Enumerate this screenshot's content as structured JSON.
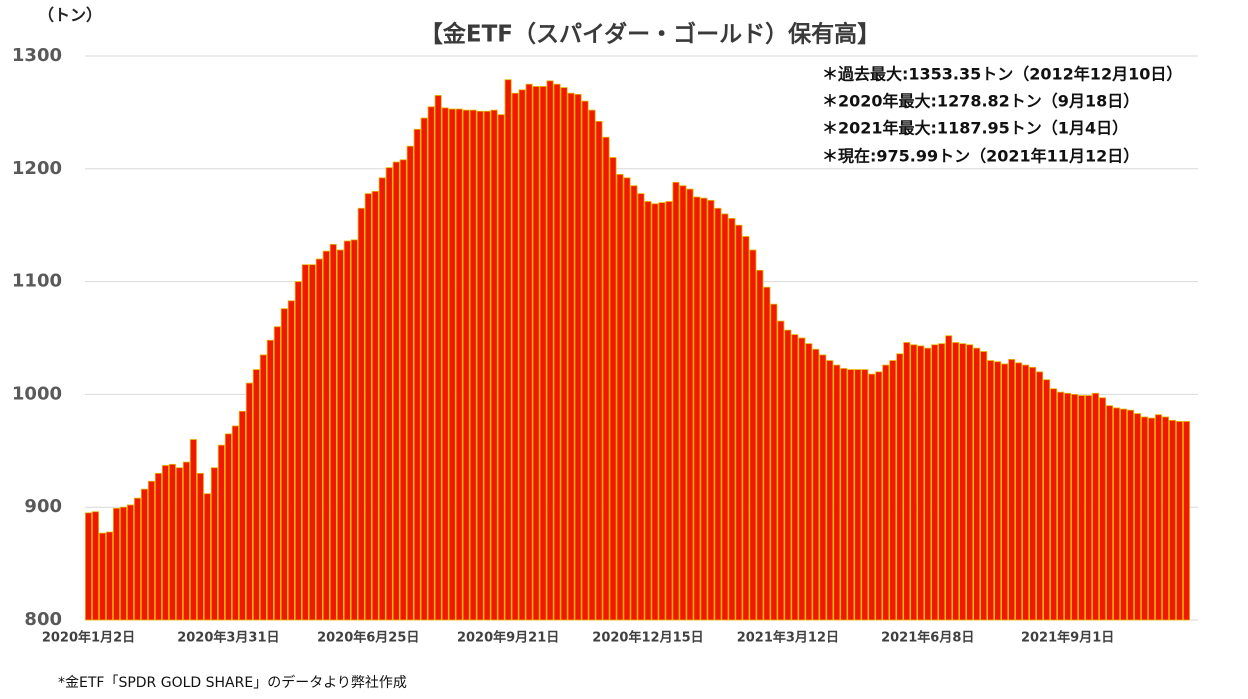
{
  "chart_data": {
    "type": "bar",
    "title": "【金ETF（スパイダー・ゴールド）保有高】",
    "y_unit": "（トン）",
    "annotations": [
      "＊過去最大:1353.35トン（2012年12月10日）",
      "＊2020年最大:1278.82トン（9月18日）",
      "＊2021年最大:1187.95トン（1月4日）",
      "＊現在:975.99トン（2021年11月12日）"
    ],
    "source": "*金ETF「SPDR GOLD SHARE」のデータより弊社作成",
    "color": "#f21800",
    "edgecolor": "#e6b400",
    "ylim": [
      800,
      1300
    ],
    "yticks": [
      800,
      900,
      1000,
      1100,
      1200,
      1300
    ],
    "grid": true,
    "categories": [
      "2020年1月2日",
      null,
      null,
      null,
      null,
      null,
      null,
      null,
      null,
      null,
      null,
      null,
      null,
      null,
      null,
      null,
      null,
      null,
      null,
      null,
      "2020年3月31日",
      null,
      null,
      null,
      null,
      null,
      null,
      null,
      null,
      null,
      null,
      null,
      null,
      null,
      null,
      null,
      null,
      null,
      null,
      null,
      "2020年6月25日",
      null,
      null,
      null,
      null,
      null,
      null,
      null,
      null,
      null,
      null,
      null,
      null,
      null,
      null,
      null,
      null,
      null,
      null,
      null,
      "2020年9月21日",
      null,
      null,
      null,
      null,
      null,
      null,
      null,
      null,
      null,
      null,
      null,
      null,
      null,
      null,
      null,
      null,
      null,
      null,
      null,
      "2020年12月15日",
      null,
      null,
      null,
      null,
      null,
      null,
      null,
      null,
      null,
      null,
      null,
      null,
      null,
      null,
      null,
      null,
      null,
      null,
      null,
      "2021年3月12日",
      null,
      null,
      null,
      null,
      null,
      null,
      null,
      null,
      null,
      null,
      null,
      null,
      null,
      null,
      null,
      null,
      null,
      null,
      null,
      "2021年6月8日",
      null,
      null,
      null,
      null,
      null,
      null,
      null,
      null,
      null,
      null,
      null,
      null,
      null,
      null,
      null,
      null,
      null,
      null,
      null,
      "2021年9月1日",
      null,
      null,
      null,
      null,
      null,
      null,
      null,
      null,
      null,
      null,
      null,
      null,
      null,
      null,
      null,
      null,
      null
    ],
    "values": [
      895,
      896,
      877,
      878,
      899,
      900,
      902,
      908,
      916,
      923,
      930,
      937,
      938,
      935,
      940,
      960,
      930,
      912,
      935,
      955,
      965,
      972,
      985,
      1010,
      1022,
      1035,
      1048,
      1060,
      1076,
      1083,
      1100,
      1115,
      1115,
      1120,
      1127,
      1133,
      1128,
      1136,
      1137,
      1165,
      1178,
      1180,
      1192,
      1201,
      1206,
      1208,
      1220,
      1235,
      1245,
      1255,
      1265,
      1254,
      1253,
      1253,
      1252,
      1252,
      1251,
      1251,
      1252,
      1248,
      1279,
      1267,
      1270,
      1275,
      1273,
      1273,
      1278,
      1275,
      1272,
      1267,
      1266,
      1260,
      1252,
      1242,
      1228,
      1210,
      1195,
      1192,
      1185,
      1178,
      1171,
      1169,
      1170,
      1171,
      1188,
      1185,
      1182,
      1175,
      1174,
      1172,
      1165,
      1160,
      1156,
      1150,
      1140,
      1128,
      1110,
      1095,
      1080,
      1065,
      1057,
      1053,
      1050,
      1045,
      1040,
      1035,
      1030,
      1026,
      1023,
      1022,
      1022,
      1022,
      1018,
      1020,
      1026,
      1030,
      1036,
      1046,
      1044,
      1043,
      1041,
      1044,
      1045,
      1052,
      1046,
      1045,
      1044,
      1041,
      1038,
      1030,
      1029,
      1027,
      1031,
      1028,
      1026,
      1024,
      1020,
      1013,
      1005,
      1002,
      1001,
      1000,
      999,
      999,
      1001,
      997,
      990,
      988,
      987,
      986,
      983,
      980,
      979,
      982,
      980,
      977,
      976,
      976
    ]
  }
}
